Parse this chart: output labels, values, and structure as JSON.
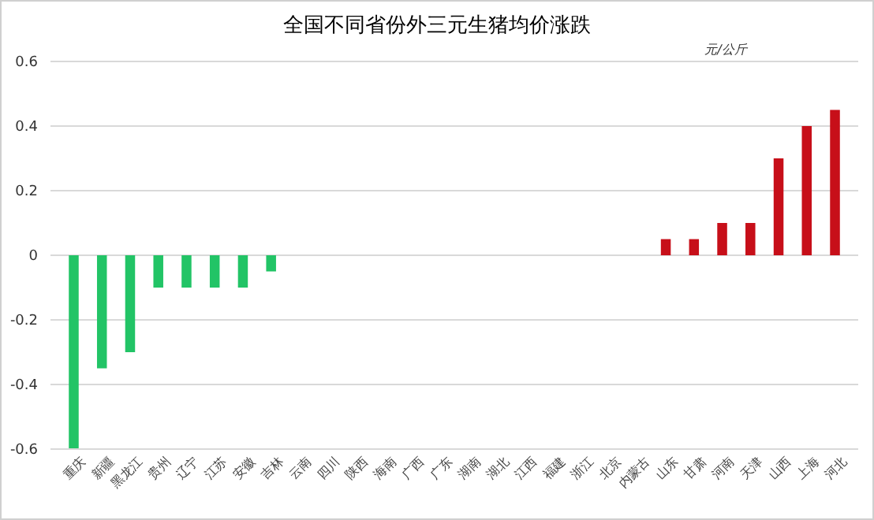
{
  "chart_data": {
    "type": "bar",
    "title": "全国不同省份外三元生猪均价涨跌",
    "categories": [
      "重庆",
      "新疆",
      "黑龙江",
      "贵州",
      "辽宁",
      "江苏",
      "安徽",
      "吉林",
      "云南",
      "四川",
      "陕西",
      "海南",
      "广西",
      "广东",
      "湖南",
      "湖北",
      "江西",
      "福建",
      "浙江",
      "北京",
      "内蒙古",
      "山东",
      "甘肃",
      "河南",
      "天津",
      "山西",
      "上海",
      "河北"
    ],
    "values": [
      -0.6,
      -0.35,
      -0.3,
      -0.1,
      -0.1,
      -0.1,
      -0.1,
      -0.05,
      0,
      0,
      0,
      0,
      0,
      0,
      0,
      0,
      0,
      0,
      0,
      0,
      0,
      0.05,
      0.05,
      0.1,
      0.1,
      0.3,
      0.4,
      0.45
    ],
    "colors": [
      "#22c466",
      "#22c466",
      "#22c466",
      "#22c466",
      "#22c466",
      "#22c466",
      "#22c466",
      "#22c466",
      "#22c466",
      "#22c466",
      "#22c466",
      "#22c466",
      "#22c466",
      "#22c466",
      "#22c466",
      "#22c466",
      "#22c466",
      "#22c466",
      "#22c466",
      "#22c466",
      "#22c466",
      "#c70f19",
      "#c70f19",
      "#c70f19",
      "#c70f19",
      "#c70f19",
      "#c70f19",
      "#c70f19"
    ],
    "ylim": [
      -0.6,
      0.6
    ],
    "yticks": [
      -0.6,
      -0.4,
      -0.2,
      0,
      0.2,
      0.4,
      0.6
    ],
    "grid": "y",
    "annotations": [
      "元/公斤"
    ]
  }
}
